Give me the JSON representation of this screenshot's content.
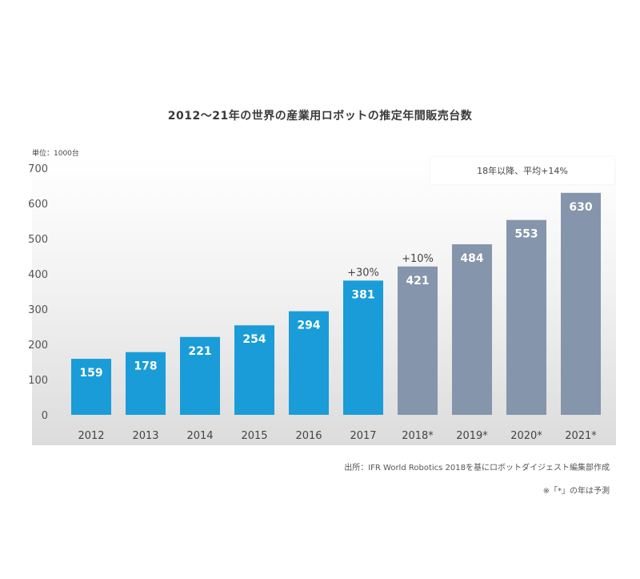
{
  "chart_data": {
    "type": "bar",
    "title": "2012～21年の世界の産業用ロボットの推定年間販売台数",
    "unit_label": "単位：1000台",
    "categories": [
      "2012",
      "2013",
      "2014",
      "2015",
      "2016",
      "2017",
      "2018*",
      "2019*",
      "2020*",
      "2021*"
    ],
    "values": [
      159,
      178,
      221,
      254,
      294,
      381,
      421,
      484,
      553,
      630
    ],
    "value_labels": [
      "159",
      "178",
      "221",
      "254",
      "294",
      "381",
      "421",
      "484",
      "553",
      "630"
    ],
    "forecast": [
      false,
      false,
      false,
      false,
      false,
      false,
      true,
      true,
      true,
      true
    ],
    "ylim": [
      0,
      700
    ],
    "yticks": [
      0,
      100,
      200,
      300,
      400,
      500,
      600,
      700
    ],
    "ytick_labels": [
      "0",
      "100",
      "200",
      "300",
      "400",
      "500",
      "600",
      "700"
    ],
    "annotations": [
      {
        "category": "2017",
        "text": "+30%"
      },
      {
        "category": "2018*",
        "text": "+10%"
      }
    ],
    "grid": false,
    "legend": "none"
  },
  "note": "18年以降、平均+14%",
  "source": "出所：IFR World Robotics 2018を基にロボットダイジェスト編集部作成",
  "footnote": "※「*」の年は予測",
  "colors": {
    "actual": "#1a9cd8",
    "forecast": "#8595ab",
    "label_text": "#ffffff"
  }
}
